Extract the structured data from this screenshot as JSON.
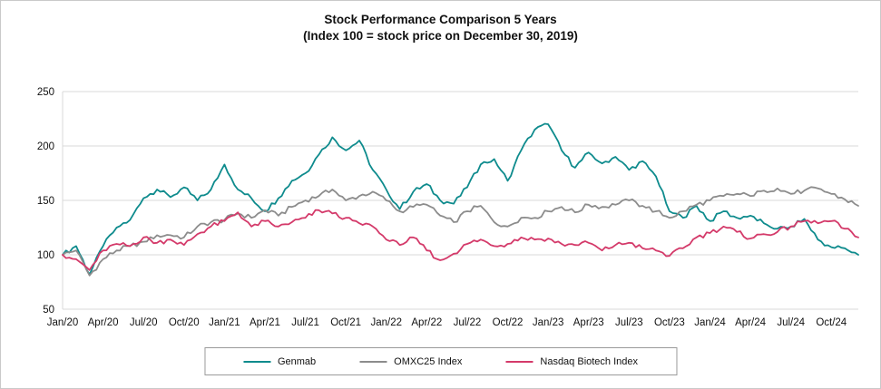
{
  "title": {
    "line1": "Stock Performance Comparison 5 Years",
    "line2": "(Index 100 = stock price on December 30, 2019)"
  },
  "chart_data": {
    "type": "line",
    "title": "Stock Performance Comparison 5 Years",
    "subtitle": "(Index 100 = stock price on December 30, 2019)",
    "xlabel": "",
    "ylabel": "",
    "ylim": [
      50,
      250
    ],
    "y_ticks": [
      50,
      100,
      150,
      200,
      250
    ],
    "grid": "horizontal",
    "legend_position": "bottom",
    "x_tick_every": 3,
    "x_tick_labels": [
      "Jan/20",
      "Apr/20",
      "Jul/20",
      "Oct/20",
      "Jan/21",
      "Apr/21",
      "Jul/21",
      "Oct/21",
      "Jan/22",
      "Apr/22",
      "Jul/22",
      "Oct/22",
      "Jan/23",
      "Apr/23",
      "Jul/23",
      "Oct/23",
      "Jan/24",
      "Apr/24",
      "Jul/24",
      "Oct/24"
    ],
    "x_unit": "month",
    "series": [
      {
        "name": "Genmab",
        "color": "#0E8B8D",
        "values": [
          100,
          108,
          82,
          108,
          125,
          132,
          152,
          160,
          153,
          162,
          150,
          160,
          183,
          160,
          152,
          140,
          152,
          168,
          175,
          192,
          208,
          196,
          205,
          178,
          160,
          142,
          158,
          165,
          150,
          147,
          162,
          183,
          188,
          168,
          196,
          215,
          220,
          196,
          180,
          194,
          184,
          190,
          178,
          186,
          172,
          140,
          134,
          145,
          131,
          140,
          134,
          136,
          129,
          124,
          126,
          133,
          114,
          107,
          106,
          100
        ]
      },
      {
        "name": "OMXC25 Index",
        "color": "#8C8C8C",
        "values": [
          100,
          104,
          81,
          96,
          104,
          108,
          112,
          118,
          118,
          116,
          126,
          130,
          132,
          138,
          134,
          141,
          136,
          144,
          150,
          154,
          160,
          150,
          154,
          158,
          150,
          140,
          144,
          146,
          136,
          130,
          140,
          145,
          130,
          126,
          134,
          134,
          140,
          144,
          139,
          146,
          144,
          146,
          150,
          145,
          140,
          134,
          140,
          146,
          150,
          154,
          156,
          154,
          159,
          161,
          156,
          159,
          161,
          156,
          151,
          145
        ]
      },
      {
        "name": "Nasdaq Biotech Index",
        "color": "#D43A6A",
        "values": [
          100,
          96,
          86,
          104,
          110,
          108,
          116,
          111,
          114,
          109,
          119,
          126,
          131,
          139,
          126,
          131,
          126,
          130,
          134,
          141,
          138,
          134,
          129,
          126,
          114,
          109,
          116,
          104,
          95,
          101,
          110,
          114,
          108,
          110,
          116,
          114,
          115,
          110,
          109,
          111,
          104,
          109,
          111,
          106,
          104,
          99,
          106,
          116,
          120,
          126,
          121,
          115,
          119,
          121,
          126,
          131,
          129,
          131,
          124,
          116
        ]
      }
    ]
  }
}
